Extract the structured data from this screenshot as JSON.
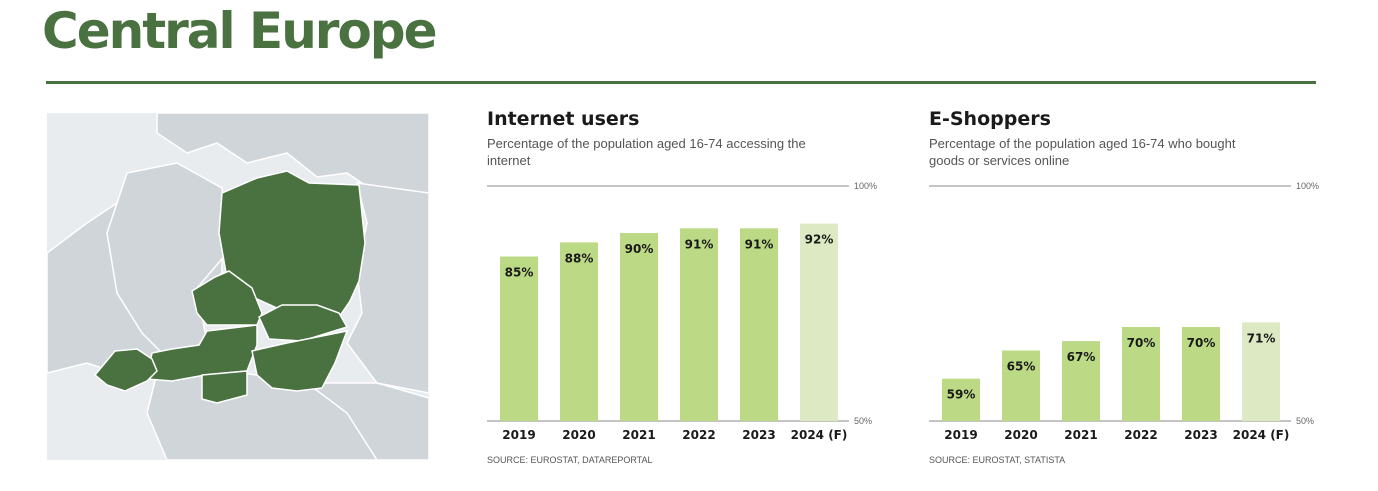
{
  "header": {
    "title": "Central Europe"
  },
  "colors": {
    "accent": "#4a7240",
    "bar": "#bcd985",
    "bar_forecast": "#dce9c2",
    "map_highlight": "#4a7240",
    "map_land": "#d0d5da",
    "map_water": "#e8ecef"
  },
  "map": {
    "icon": "central-europe-map"
  },
  "panels": [
    {
      "title": "Internet users",
      "subtitle": "Percentage of the population aged 16-74 accessing the internet",
      "source": "SOURCE: EUROSTAT, DATAREPORTAL"
    },
    {
      "title": "E-Shoppers",
      "subtitle": "Percentage of the population aged 16-74 who bought goods or services online",
      "source": "SOURCE: EUROSTAT, STATISTA"
    }
  ],
  "chart_data": [
    {
      "type": "bar",
      "title": "Internet users",
      "categories": [
        "2019",
        "2020",
        "2021",
        "2022",
        "2023",
        "2024 (F)"
      ],
      "values": [
        85,
        88,
        90,
        91,
        91,
        92
      ],
      "value_labels": [
        "85%",
        "88%",
        "90%",
        "91%",
        "91%",
        "92%"
      ],
      "forecast": [
        false,
        false,
        false,
        false,
        false,
        true
      ],
      "ylim": [
        50,
        100
      ],
      "axis_labels": {
        "top": "100%",
        "bottom": "50%"
      },
      "grid": false
    },
    {
      "type": "bar",
      "title": "E-Shoppers",
      "categories": [
        "2019",
        "2020",
        "2021",
        "2022",
        "2023",
        "2024 (F)"
      ],
      "values": [
        59,
        65,
        67,
        70,
        70,
        71
      ],
      "value_labels": [
        "59%",
        "65%",
        "67%",
        "70%",
        "70%",
        "71%"
      ],
      "forecast": [
        false,
        false,
        false,
        false,
        false,
        true
      ],
      "ylim": [
        50,
        100
      ],
      "axis_labels": {
        "top": "100%",
        "bottom": "50%"
      },
      "grid": false
    }
  ]
}
